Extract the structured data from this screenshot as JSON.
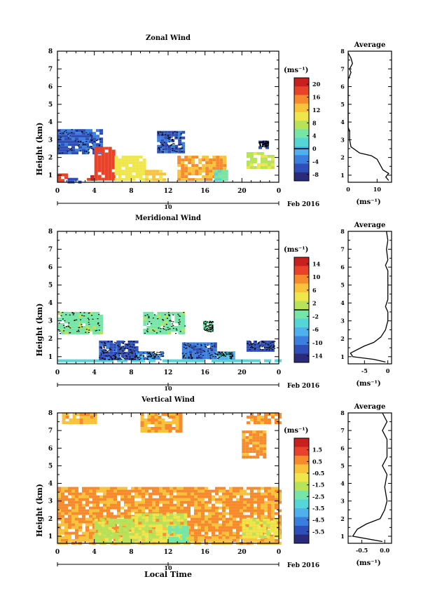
{
  "figure": {
    "xlabel": "Local Time",
    "date_label": "Feb 2016",
    "date_marker": "10",
    "cbar_unit": "(ms⁻¹)"
  },
  "chart_data": [
    {
      "type": "heatmap",
      "title": "Zonal Wind",
      "ylabel": "Height (km)",
      "xlim": [
        0,
        24
      ],
      "ylim": [
        0.6,
        8
      ],
      "xticks": [
        "0",
        "4",
        "8",
        "12",
        "16",
        "20",
        "0"
      ],
      "yticks": [
        "1",
        "2",
        "3",
        "4",
        "5",
        "6",
        "7",
        "8"
      ],
      "colorbar": {
        "min": -10,
        "max": 22,
        "ticks": [
          "20",
          "16",
          "12",
          "8",
          "4",
          "0",
          "-4",
          "-8"
        ],
        "contour_at": 0
      },
      "regions": [
        {
          "x": [
            0.0,
            4.6
          ],
          "y": [
            2.25,
            3.6
          ],
          "value": -5
        },
        {
          "x": [
            0.0,
            1.1
          ],
          "y": [
            0.65,
            1.1
          ],
          "value": 18
        },
        {
          "x": [
            1.1,
            2.5
          ],
          "y": [
            0.65,
            0.85
          ],
          "value": -6
        },
        {
          "x": [
            3.2,
            4.0
          ],
          "y": [
            0.75,
            1.0
          ],
          "value": 19
        },
        {
          "x": [
            4.0,
            6.2
          ],
          "y": [
            0.8,
            2.6
          ],
          "value": 18
        },
        {
          "x": [
            6.2,
            9.5
          ],
          "y": [
            0.8,
            2.1
          ],
          "value": 10
        },
        {
          "x": [
            9.5,
            11.5
          ],
          "y": [
            0.75,
            1.3
          ],
          "value": 12
        },
        {
          "x": [
            10.8,
            13.5
          ],
          "y": [
            2.3,
            3.5
          ],
          "value": -5
        },
        {
          "x": [
            13.0,
            18.0
          ],
          "y": [
            0.8,
            2.1
          ],
          "value": 14
        },
        {
          "x": [
            17.0,
            18.5
          ],
          "y": [
            0.8,
            1.3
          ],
          "value": 4
        },
        {
          "x": [
            20.5,
            23.5
          ],
          "y": [
            1.5,
            2.3
          ],
          "value": 8
        },
        {
          "x": [
            21.8,
            22.8
          ],
          "y": [
            2.6,
            2.95
          ],
          "value": -6
        }
      ],
      "average_profile": {
        "title": "Average",
        "xlabel": "(ms⁻¹)",
        "xlim": [
          0,
          15
        ],
        "xticks": [
          "0",
          "10"
        ],
        "points": [
          [
            14,
            0.7
          ],
          [
            13,
            0.9
          ],
          [
            14,
            1.1
          ],
          [
            12,
            1.3
          ],
          [
            11,
            1.6
          ],
          [
            10,
            1.9
          ],
          [
            8,
            2.1
          ],
          [
            4,
            2.25
          ],
          [
            1,
            2.6
          ],
          [
            0.5,
            3.0
          ],
          [
            0.5,
            3.5
          ],
          [
            0,
            3.7
          ],
          [
            0,
            6.4
          ],
          [
            0.5,
            6.6
          ],
          [
            1,
            6.8
          ],
          [
            0.5,
            7.0
          ],
          [
            1.5,
            7.3
          ],
          [
            1,
            7.6
          ],
          [
            0,
            7.9
          ]
        ]
      }
    },
    {
      "type": "heatmap",
      "title": "Meridional Wind",
      "ylabel": "Height (km)",
      "xlim": [
        0,
        24
      ],
      "ylim": [
        0.6,
        8
      ],
      "xticks": [
        "0",
        "4",
        "8",
        "12",
        "16",
        "20",
        "0"
      ],
      "yticks": [
        "1",
        "2",
        "3",
        "4",
        "5",
        "6",
        "7",
        "8"
      ],
      "colorbar": {
        "min": -16,
        "max": 16,
        "ticks": [
          "14",
          "10",
          "6",
          "2",
          "-2",
          "-6",
          "-10",
          "-14"
        ],
        "contour_at": 0
      },
      "regions": [
        {
          "x": [
            0.0,
            4.6
          ],
          "y": [
            2.3,
            3.5
          ],
          "value": -1
        },
        {
          "x": [
            9.3,
            13.8
          ],
          "y": [
            2.3,
            3.5
          ],
          "value": -1
        },
        {
          "x": [
            15.8,
            16.8
          ],
          "y": [
            2.4,
            3.0
          ],
          "value": -1
        },
        {
          "x": [
            0.0,
            24.0
          ],
          "y": [
            0.75,
            0.85
          ],
          "value": -4
        },
        {
          "x": [
            4.5,
            6.5
          ],
          "y": [
            0.85,
            1.9
          ],
          "value": -11
        },
        {
          "x": [
            6.5,
            8.5
          ],
          "y": [
            0.85,
            1.9
          ],
          "value": -12
        },
        {
          "x": [
            8.5,
            11.5
          ],
          "y": [
            0.85,
            1.3
          ],
          "value": -9
        },
        {
          "x": [
            13.5,
            17.0
          ],
          "y": [
            0.9,
            1.8
          ],
          "value": -10
        },
        {
          "x": [
            17.0,
            19.0
          ],
          "y": [
            0.9,
            1.3
          ],
          "value": -6
        },
        {
          "x": [
            20.5,
            23.5
          ],
          "y": [
            1.4,
            1.9
          ],
          "value": -12
        }
      ],
      "average_profile": {
        "title": "Average",
        "xlabel": "(ms⁻¹)",
        "xlim": [
          -8.5,
          0.8
        ],
        "xticks": [
          "-5",
          "0"
        ],
        "points": [
          [
            -0.5,
            0.7
          ],
          [
            -3,
            0.85
          ],
          [
            -7.5,
            1.0
          ],
          [
            -8,
            1.2
          ],
          [
            -5,
            1.6
          ],
          [
            -3,
            1.8
          ],
          [
            -1.5,
            2.1
          ],
          [
            -0.5,
            2.5
          ],
          [
            0,
            3.0
          ],
          [
            0,
            3.5
          ],
          [
            -0.5,
            3.8
          ],
          [
            0,
            4.2
          ],
          [
            0,
            5.8
          ],
          [
            -0.5,
            6.1
          ],
          [
            0,
            6.4
          ],
          [
            -0.3,
            7.0
          ],
          [
            0,
            7.5
          ],
          [
            -0.3,
            8.0
          ]
        ]
      }
    },
    {
      "type": "heatmap",
      "title": "Vertical Wind",
      "ylabel": "Height (km)",
      "xlim": [
        0,
        24
      ],
      "ylim": [
        0.6,
        8
      ],
      "xticks": [
        "0",
        "4",
        "8",
        "12",
        "16",
        "20",
        "0"
      ],
      "yticks": [
        "1",
        "2",
        "3",
        "4",
        "5",
        "6",
        "7",
        "8"
      ],
      "colorbar": {
        "min": -6.5,
        "max": 2.5,
        "ticks": [
          "1.5",
          "0.5",
          "-0.5",
          "-1.5",
          "-2.5",
          "-3.5",
          "-4.5",
          "-5.5"
        ]
      },
      "regions": [
        {
          "x": [
            0.0,
            24.0
          ],
          "y": [
            1.0,
            3.8
          ],
          "value": 0.4
        },
        {
          "x": [
            0.0,
            24.0
          ],
          "y": [
            0.6,
            1.0
          ],
          "value": 0.0
        },
        {
          "x": [
            4.0,
            8.0
          ],
          "y": [
            0.7,
            2.0
          ],
          "value": -1.5
        },
        {
          "x": [
            8.0,
            14.0
          ],
          "y": [
            0.7,
            2.3
          ],
          "value": -1.2
        },
        {
          "x": [
            12.0,
            14.0
          ],
          "y": [
            0.8,
            1.6
          ],
          "value": -2.2
        },
        {
          "x": [
            20.0,
            24.0
          ],
          "y": [
            1.0,
            2.0
          ],
          "value": -1.0
        },
        {
          "x": [
            0.5,
            4.0
          ],
          "y": [
            7.5,
            8.0
          ],
          "value": 0.2
        },
        {
          "x": [
            9.0,
            13.5
          ],
          "y": [
            7.0,
            8.0
          ],
          "value": 0.2
        },
        {
          "x": [
            20.5,
            24.0
          ],
          "y": [
            7.5,
            8.0
          ],
          "value": 0.4
        },
        {
          "x": [
            20.0,
            22.5
          ],
          "y": [
            5.5,
            7.0
          ],
          "value": 0.5
        }
      ],
      "average_profile": {
        "title": "Average",
        "xlabel": "(ms⁻¹)",
        "xlim": [
          -0.8,
          0.15
        ],
        "xticks": [
          "-0.5",
          "0.0"
        ],
        "points": [
          [
            -0.05,
            0.7
          ],
          [
            -0.7,
            1.0
          ],
          [
            -0.6,
            1.4
          ],
          [
            -0.4,
            1.7
          ],
          [
            -0.1,
            2.0
          ],
          [
            0,
            2.5
          ],
          [
            0.05,
            3.0
          ],
          [
            0,
            3.8
          ],
          [
            0.05,
            4.5
          ],
          [
            -0.05,
            5.0
          ],
          [
            0.05,
            5.5
          ],
          [
            0.05,
            6.5
          ],
          [
            -0.05,
            7.0
          ],
          [
            0.05,
            7.5
          ],
          [
            -0.05,
            8.0
          ]
        ]
      }
    }
  ]
}
